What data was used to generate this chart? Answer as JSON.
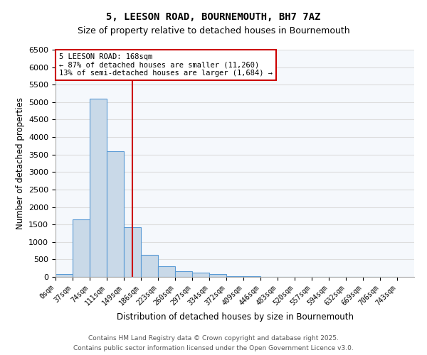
{
  "title1": "5, LEESON ROAD, BOURNEMOUTH, BH7 7AZ",
  "title2": "Size of property relative to detached houses in Bournemouth",
  "xlabel": "Distribution of detached houses by size in Bournemouth",
  "ylabel": "Number of detached properties",
  "tick_labels": [
    "0sqm",
    "37sqm",
    "74sqm",
    "111sqm",
    "149sqm",
    "186sqm",
    "223sqm",
    "260sqm",
    "297sqm",
    "334sqm",
    "372sqm",
    "409sqm",
    "446sqm",
    "483sqm",
    "520sqm",
    "557sqm",
    "594sqm",
    "632sqm",
    "669sqm",
    "706sqm",
    "743sqm"
  ],
  "bar_values": [
    75,
    1650,
    5100,
    3600,
    1420,
    620,
    300,
    160,
    120,
    90,
    30,
    20,
    5,
    0,
    0,
    0,
    0,
    0,
    0,
    0
  ],
  "bar_color": "#c9d9e8",
  "bar_edge_color": "#5b9bd5",
  "vline_position": 4.5,
  "vline_color": "#cc0000",
  "annotation_text": "5 LEESON ROAD: 168sqm\n← 87% of detached houses are smaller (11,260)\n13% of semi-detached houses are larger (1,684) →",
  "annotation_box_color": "#cc0000",
  "ylim": [
    0,
    6500
  ],
  "yticks": [
    0,
    500,
    1000,
    1500,
    2000,
    2500,
    3000,
    3500,
    4000,
    4500,
    5000,
    5500,
    6000,
    6500
  ],
  "grid_color": "#dddddd",
  "bg_color": "#f5f8fc",
  "footnote1": "Contains HM Land Registry data © Crown copyright and database right 2025.",
  "footnote2": "Contains public sector information licensed under the Open Government Licence v3.0."
}
